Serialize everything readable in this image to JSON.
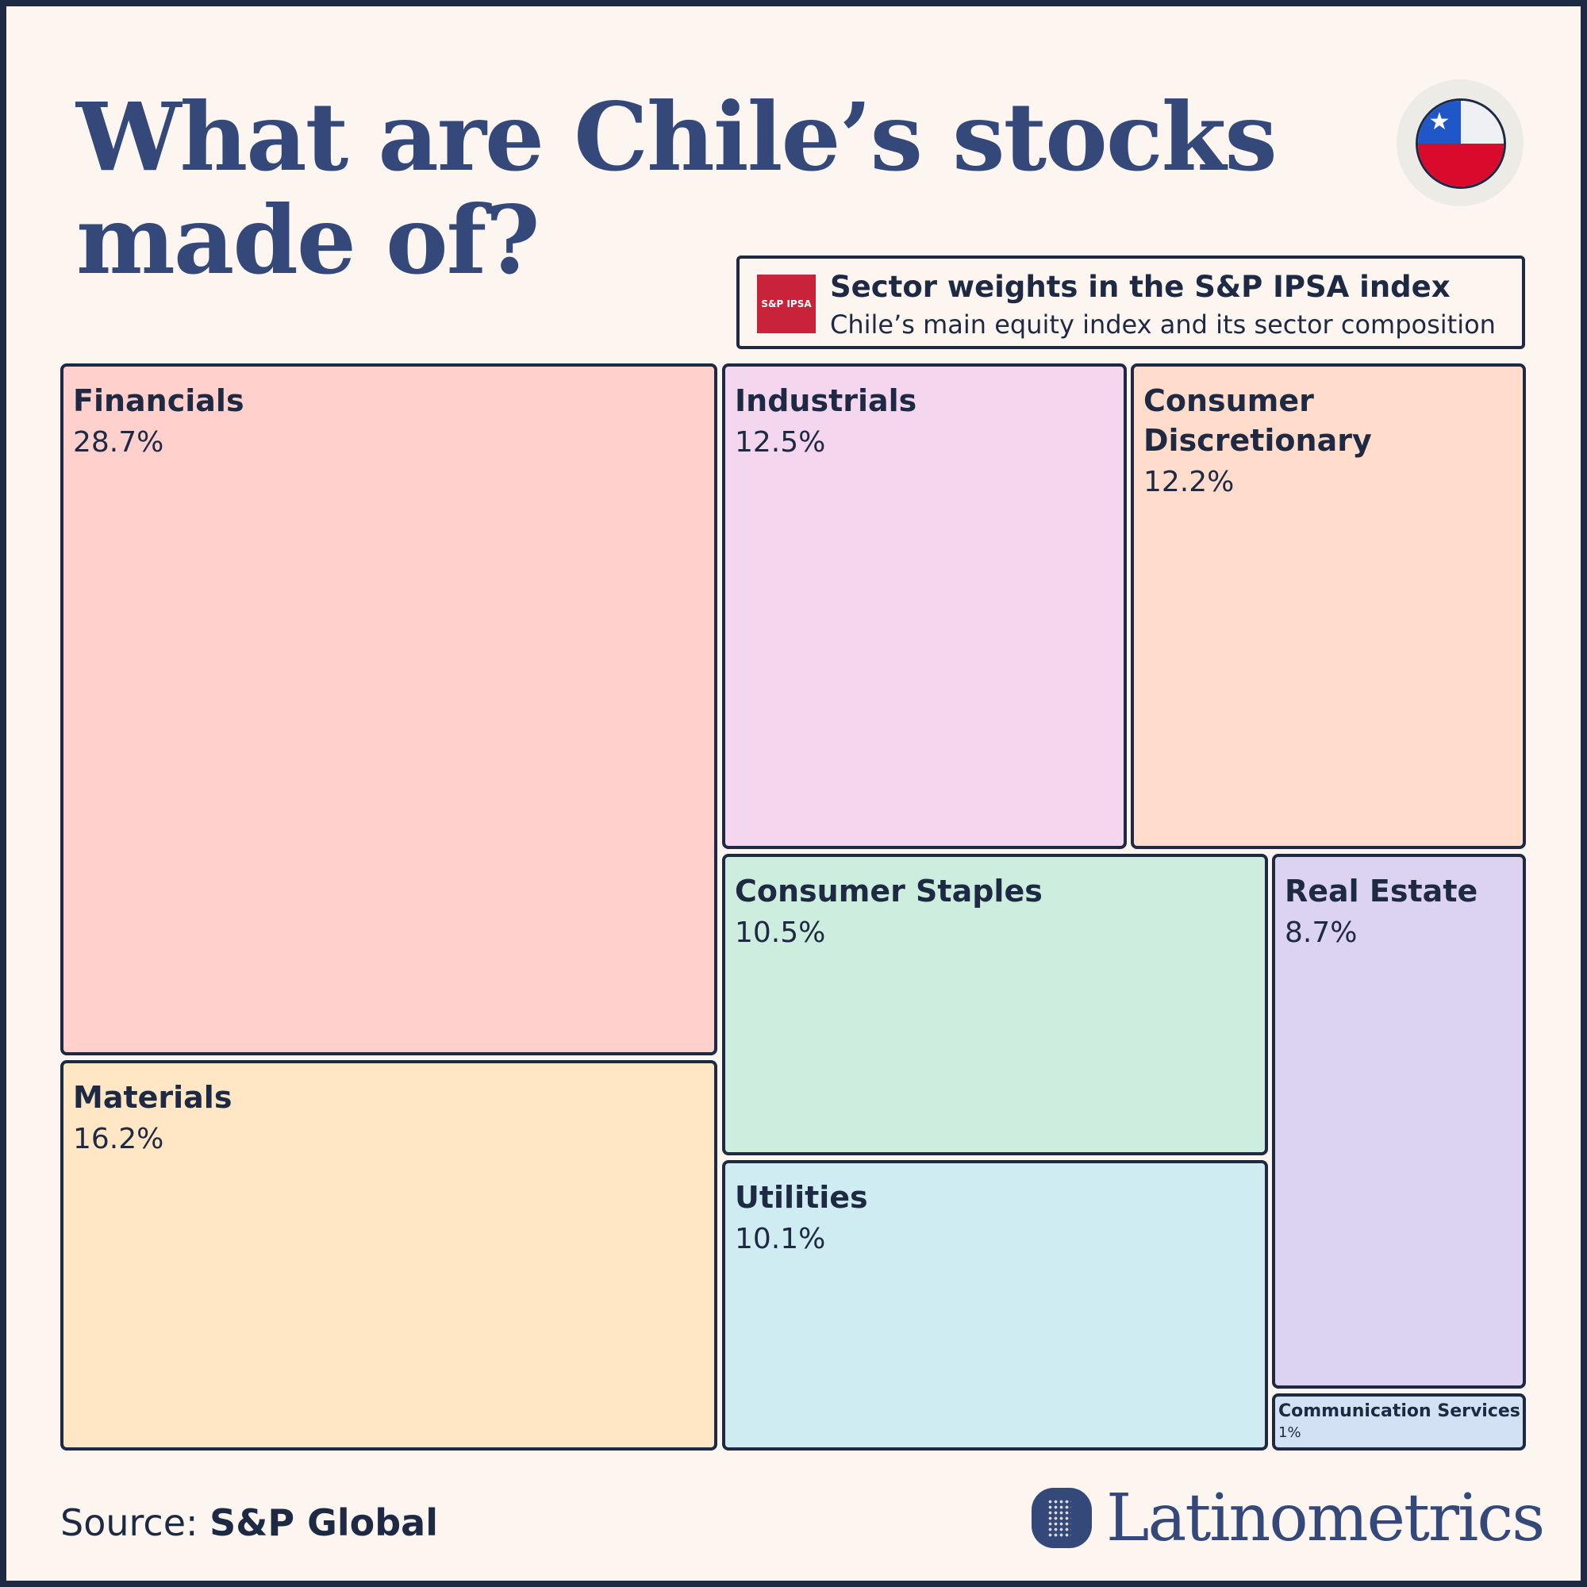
{
  "title_lines": [
    "What are Chile’s stocks",
    "made of?"
  ],
  "legend": {
    "logo_text": "S&P IPSA",
    "title": "Sector weights in the S&P IPSA index",
    "subtitle": "Chile’s main equity index and its sector composition"
  },
  "chart_data": {
    "type": "treemap",
    "unit": "%",
    "items": [
      {
        "name": "Financials",
        "value": 28.7,
        "label": "28.7%",
        "color": "#ffd0cc"
      },
      {
        "name": "Materials",
        "value": 16.2,
        "label": "16.2%",
        "color": "#ffe7c6"
      },
      {
        "name": "Industrials",
        "value": 12.5,
        "label": "12.5%",
        "color": "#f4d6ee"
      },
      {
        "name": "Consumer Discretionary",
        "value": 12.2,
        "label": "12.2%",
        "color": "#ffdccc"
      },
      {
        "name": "Consumer Staples",
        "value": 10.5,
        "label": "10.5%",
        "color": "#cdeede"
      },
      {
        "name": "Utilities",
        "value": 10.1,
        "label": "10.1%",
        "color": "#cfecf3"
      },
      {
        "name": "Real Estate",
        "value": 8.7,
        "label": "8.7%",
        "color": "#dcd3f0"
      },
      {
        "name": "Communication Services",
        "value": 1,
        "label": "1%",
        "color": "#d3e1f4"
      }
    ]
  },
  "footer": {
    "source_prefix": "Source:",
    "source_name": "S&P Global",
    "brand": "Latinometrics"
  },
  "colors": {
    "title": "#34497a",
    "border": "#1e2a44",
    "background": "#fcf5f0",
    "logo_red": "#c8233a"
  },
  "icons": [
    "chile-flag-icon",
    "latinometrics-logo-icon"
  ]
}
